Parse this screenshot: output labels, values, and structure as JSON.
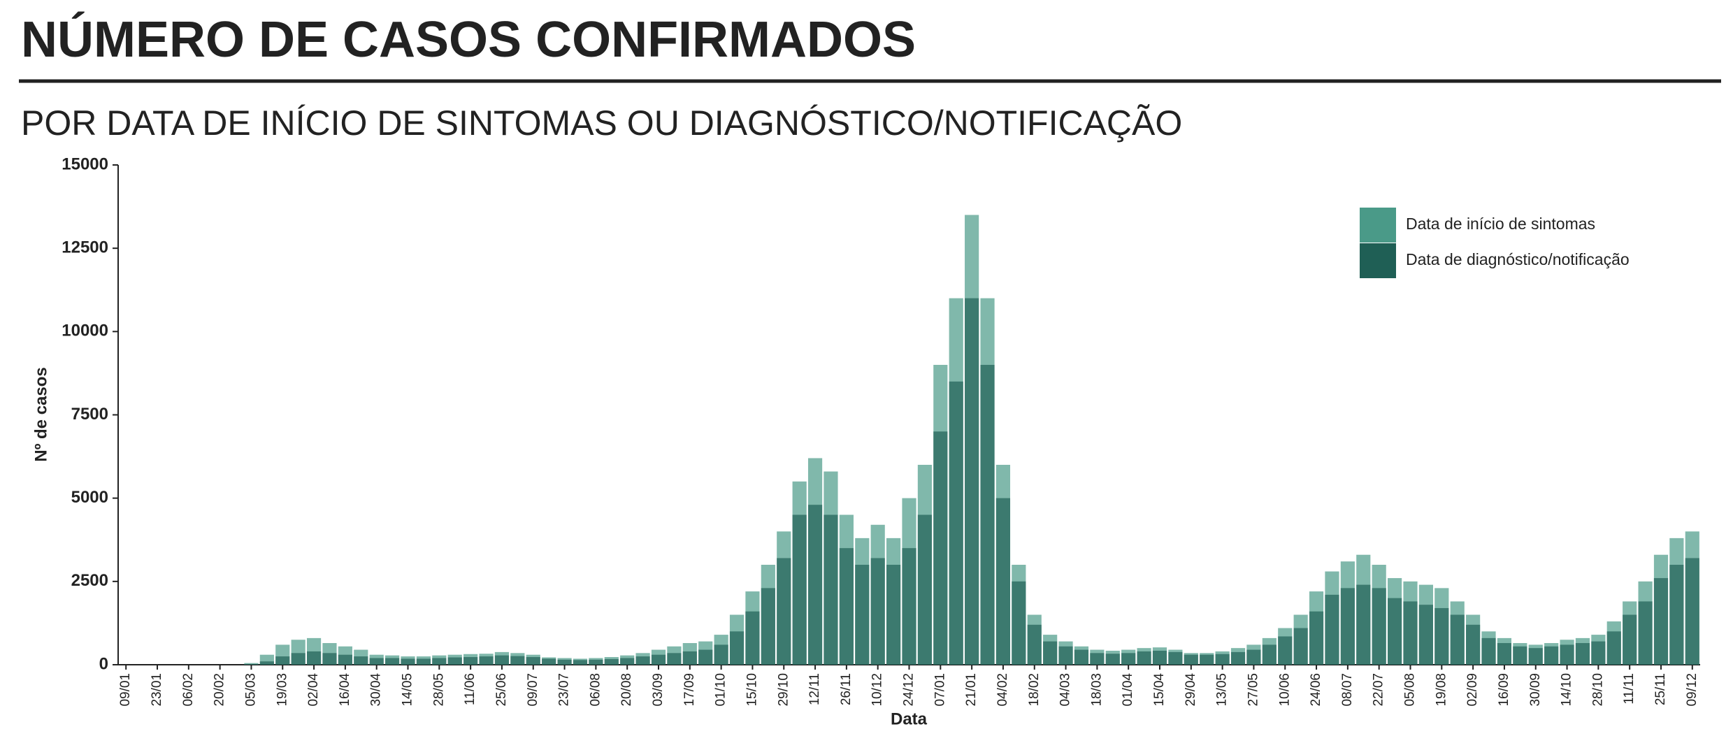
{
  "chart_data": {
    "type": "bar",
    "title": "NÚMERO DE CASOS CONFIRMADOS",
    "subtitle": "POR DATA DE INÍCIO DE SINTOMAS OU DIAGNÓSTICO/NOTIFICAÇÃO",
    "x_label": "Data",
    "y_label": "Nº de casos",
    "legend_position": "top-right",
    "ylim": [
      0,
      15000
    ],
    "yticks": [
      0,
      2500,
      5000,
      7500,
      10000,
      12500,
      15000
    ],
    "categories": [
      "09/01",
      null,
      "23/01",
      null,
      "06/02",
      null,
      "20/02",
      null,
      "05/03",
      null,
      "19/03",
      null,
      "02/04",
      null,
      "16/04",
      null,
      "30/04",
      null,
      "14/05",
      null,
      "28/05",
      null,
      "11/06",
      null,
      "25/06",
      null,
      "09/07",
      null,
      "23/07",
      null,
      "06/08",
      null,
      "20/08",
      null,
      "03/09",
      null,
      "17/09",
      null,
      "01/10",
      null,
      "15/10",
      null,
      "29/10",
      null,
      "12/11",
      null,
      "26/11",
      null,
      "10/12",
      null,
      "24/12",
      null,
      "07/01",
      null,
      "21/01",
      null,
      "04/02",
      null,
      "18/02",
      null,
      "04/03",
      null,
      "18/03",
      null,
      "01/04",
      null,
      "15/04",
      null,
      "29/04",
      null,
      "13/05",
      null,
      "27/05",
      null,
      "10/06",
      null,
      "24/06",
      null,
      "08/07",
      null,
      "22/07",
      null,
      "05/08",
      null,
      "19/08",
      null,
      "02/09",
      null,
      "16/09",
      null,
      "30/09",
      null,
      "14/10",
      null,
      "28/10",
      null,
      "11/11",
      null,
      "25/11",
      null,
      "09/12"
    ],
    "series": [
      {
        "name": "Data de início de sintomas",
        "color": "#4a9a88",
        "values": [
          0,
          0,
          0,
          0,
          0,
          0,
          0,
          0,
          50,
          300,
          600,
          750,
          800,
          650,
          550,
          450,
          300,
          280,
          250,
          250,
          280,
          300,
          320,
          330,
          380,
          350,
          300,
          220,
          200,
          180,
          200,
          230,
          280,
          350,
          450,
          550,
          650,
          700,
          900,
          1500,
          2200,
          3000,
          4000,
          5500,
          6200,
          5800,
          4500,
          3800,
          4200,
          3800,
          5000,
          6000,
          9000,
          11000,
          13500,
          11000,
          6000,
          3000,
          1500,
          900,
          700,
          550,
          450,
          420,
          450,
          500,
          520,
          450,
          350,
          350,
          400,
          500,
          600,
          800,
          1100,
          1500,
          2200,
          2800,
          3100,
          3300,
          3000,
          2600,
          2500,
          2400,
          2300,
          1900,
          1500,
          1000,
          800,
          650,
          600,
          650,
          750,
          800,
          900,
          1300,
          1900,
          2500,
          3300,
          3800,
          4000
        ]
      },
      {
        "name": "Data de diagnóstico/notificação",
        "color": "#1f5f55",
        "values": [
          0,
          0,
          0,
          0,
          0,
          0,
          0,
          0,
          20,
          100,
          250,
          350,
          400,
          350,
          300,
          250,
          200,
          200,
          180,
          180,
          200,
          220,
          230,
          250,
          280,
          260,
          230,
          180,
          150,
          140,
          150,
          170,
          200,
          250,
          300,
          350,
          400,
          450,
          600,
          1000,
          1600,
          2300,
          3200,
          4500,
          4800,
          4500,
          3500,
          3000,
          3200,
          3000,
          3500,
          4500,
          7000,
          8500,
          11000,
          9000,
          5000,
          2500,
          1200,
          700,
          550,
          450,
          350,
          330,
          350,
          400,
          420,
          380,
          300,
          300,
          320,
          380,
          450,
          600,
          850,
          1100,
          1600,
          2100,
          2300,
          2400,
          2300,
          2000,
          1900,
          1800,
          1700,
          1500,
          1200,
          800,
          650,
          550,
          500,
          550,
          600,
          650,
          700,
          1000,
          1500,
          1900,
          2600,
          3000,
          3200
        ]
      }
    ]
  }
}
